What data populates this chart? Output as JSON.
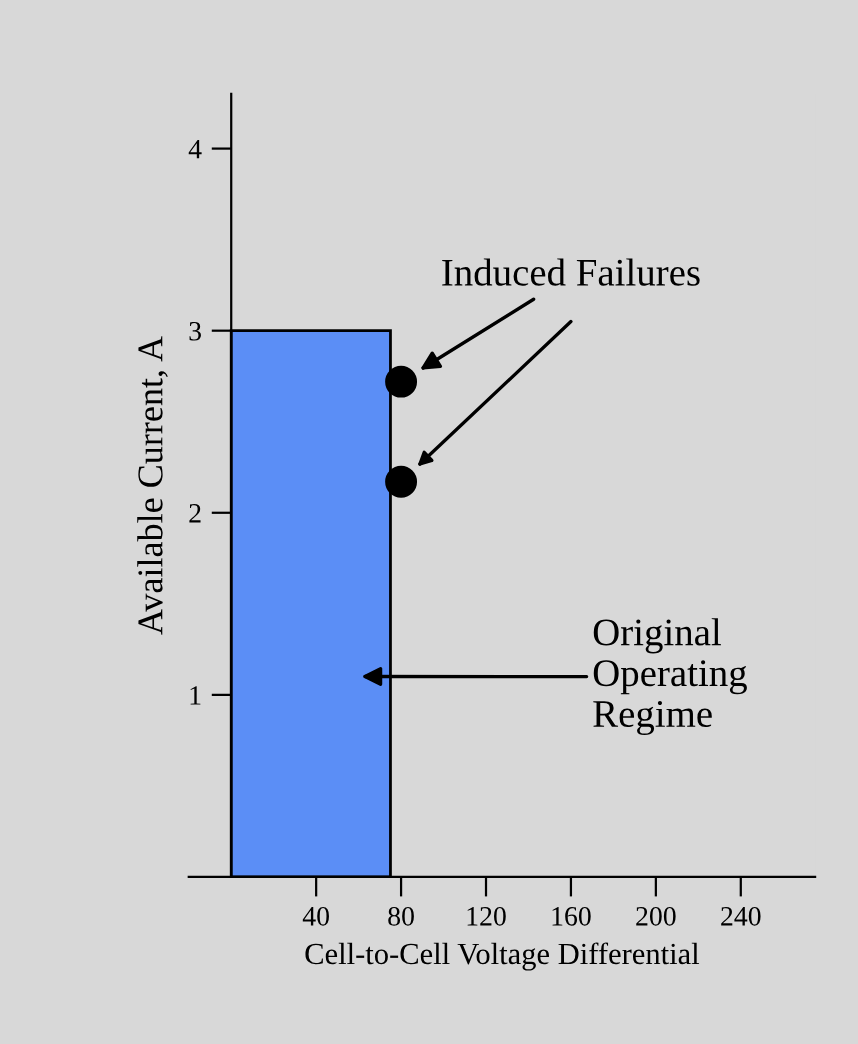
{
  "chart_data": {
    "type": "histogram",
    "xlabel": "Cell-to-Cell Voltage Differential",
    "ylabel": "Available Current, A",
    "xlim": [
      -20,
      275
    ],
    "ylim": [
      0,
      4.3
    ],
    "xticks": [
      40,
      80,
      120,
      160,
      200,
      240
    ],
    "yticks": [
      1,
      2,
      3,
      4
    ],
    "grid": false,
    "series": [
      {
        "bins": [
          0,
          75
        ],
        "values": [
          3
        ],
        "color": "#5b8ef6"
      },
      {
        "type": "scatter",
        "x": [
          80,
          80
        ],
        "values": [
          2.72,
          2.17
        ],
        "color": "#000000",
        "marker": "circle"
      }
    ],
    "annotations": [
      {
        "text": "Induced Failures",
        "x": 80,
        "y": 2.72
      },
      "Original\nOperating\nRegime"
    ]
  }
}
